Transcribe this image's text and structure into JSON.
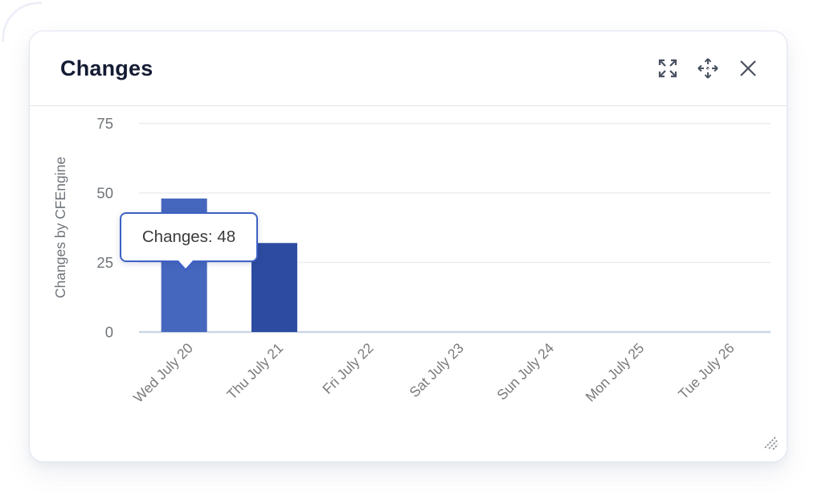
{
  "widget": {
    "title": "Changes",
    "toolbar": {
      "expand_icon": "expand-fullscreen",
      "move_icon": "move-drag",
      "close_icon": "close"
    }
  },
  "tooltip": {
    "label": "Changes: 48"
  },
  "chart_data": {
    "type": "bar",
    "title": "Changes",
    "categories": [
      "Wed July 20",
      "Thu July 21",
      "Fri July 22",
      "Sat July 23",
      "Sun July 24",
      "Mon July 25",
      "Tue July 26"
    ],
    "values": [
      48,
      32,
      0,
      0,
      0,
      0,
      0
    ],
    "series_name": "Changes",
    "xlabel": "",
    "ylabel": "Changes by CFEngine",
    "yticks": [
      0,
      25,
      50,
      75
    ],
    "ylim": [
      0,
      75
    ],
    "grid": "horizontal",
    "legend": "none",
    "highlight_index": 0,
    "colors": {
      "bar": "#2d4ba0",
      "bar_highlight": "#4667be",
      "tooltip_border": "#3d61c4"
    },
    "tooltip": {
      "label": "Changes: 48",
      "target_category": "Wed July 20",
      "value": 48
    }
  }
}
